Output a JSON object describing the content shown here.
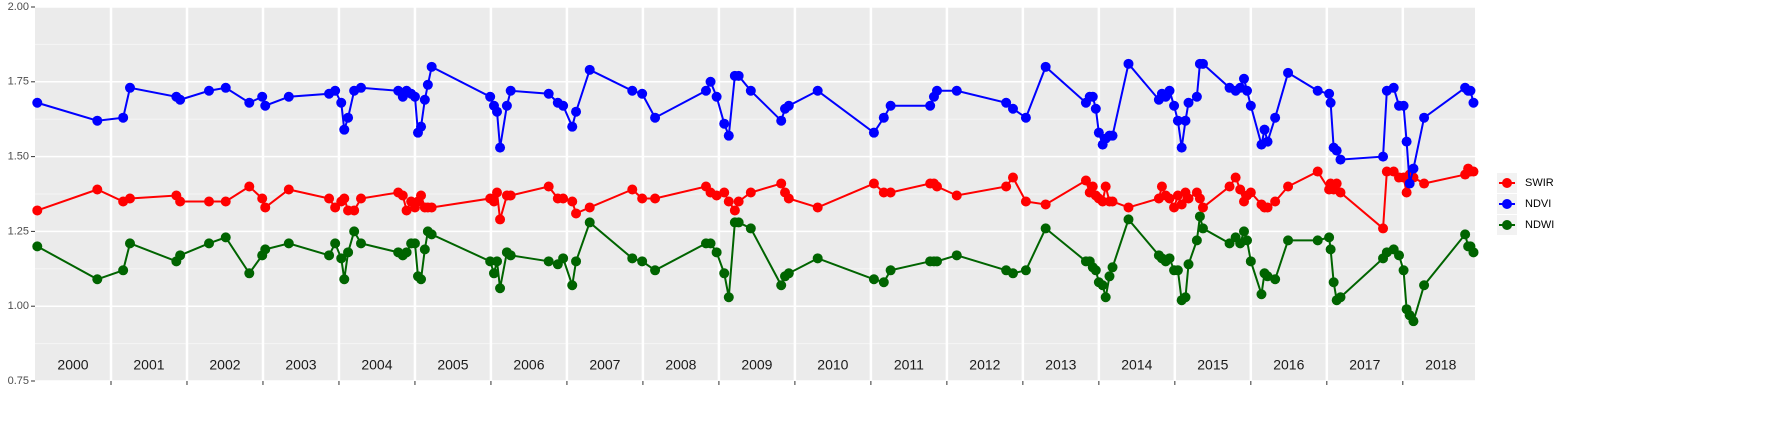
{
  "chart_data": {
    "type": "line",
    "x": [
      2000.03,
      2000.82,
      2001.16,
      2001.25,
      2001.86,
      2001.91,
      2002.29,
      2002.51,
      2002.82,
      2002.99,
      2003.03,
      2003.34,
      2003.87,
      2003.95,
      2004.03,
      2004.07,
      2004.12,
      2004.2,
      2004.29,
      2004.78,
      2004.84,
      2004.89,
      2004.95,
      2005.0,
      2005.04,
      2005.08,
      2005.13,
      2005.17,
      2005.22,
      2005.99,
      2006.04,
      2006.08,
      2006.12,
      2006.21,
      2006.26,
      2006.76,
      2006.88,
      2006.95,
      2007.07,
      2007.12,
      2007.3,
      2007.86,
      2007.99,
      2008.16,
      2008.83,
      2008.89,
      2008.97,
      2009.07,
      2009.13,
      2009.21,
      2009.26,
      2009.42,
      2009.82,
      2009.87,
      2009.92,
      2010.3,
      2011.04,
      2011.17,
      2011.26,
      2011.78,
      2011.83,
      2011.87,
      2012.13,
      2012.78,
      2012.87,
      2013.04,
      2013.3,
      2013.83,
      2013.88,
      2013.92,
      2013.96,
      2014.0,
      2014.05,
      2014.09,
      2014.14,
      2014.18,
      2014.39,
      2014.79,
      2014.83,
      2014.88,
      2014.93,
      2014.99,
      2015.04,
      2015.09,
      2015.14,
      2015.18,
      2015.29,
      2015.33,
      2015.37,
      2015.72,
      2015.8,
      2015.86,
      2015.91,
      2015.95,
      2016.0,
      2016.14,
      2016.18,
      2016.22,
      2016.32,
      2016.49,
      2016.88,
      2017.03,
      2017.05,
      2017.09,
      2017.13,
      2017.18,
      2017.74,
      2017.79,
      2017.88,
      2017.95,
      2018.01,
      2018.05,
      2018.09,
      2018.14,
      2018.28,
      2018.82,
      2018.86,
      2018.89,
      2018.93
    ],
    "series": [
      {
        "name": "SWIR",
        "color": "#ff0000",
        "values": [
          1.32,
          1.39,
          1.35,
          1.36,
          1.37,
          1.35,
          1.35,
          1.35,
          1.4,
          1.36,
          1.33,
          1.39,
          1.36,
          1.33,
          1.35,
          1.36,
          1.32,
          1.32,
          1.36,
          1.38,
          1.37,
          1.32,
          1.35,
          1.33,
          1.35,
          1.37,
          1.33,
          1.33,
          1.33,
          1.36,
          1.35,
          1.38,
          1.29,
          1.37,
          1.37,
          1.4,
          1.36,
          1.36,
          1.35,
          1.31,
          1.33,
          1.39,
          1.36,
          1.36,
          1.4,
          1.38,
          1.37,
          1.38,
          1.35,
          1.32,
          1.35,
          1.38,
          1.41,
          1.38,
          1.36,
          1.33,
          1.41,
          1.38,
          1.38,
          1.41,
          1.41,
          1.4,
          1.37,
          1.4,
          1.43,
          1.35,
          1.34,
          1.42,
          1.38,
          1.4,
          1.37,
          1.36,
          1.35,
          1.4,
          1.35,
          1.35,
          1.33,
          1.36,
          1.4,
          1.37,
          1.36,
          1.33,
          1.37,
          1.34,
          1.38,
          1.36,
          1.38,
          1.36,
          1.33,
          1.4,
          1.43,
          1.39,
          1.35,
          1.37,
          1.38,
          1.34,
          1.33,
          1.33,
          1.35,
          1.4,
          1.45,
          1.39,
          1.41,
          1.39,
          1.41,
          1.38,
          1.26,
          1.45,
          1.45,
          1.43,
          1.43,
          1.38,
          1.44,
          1.43,
          1.41,
          1.44,
          1.46,
          1.45,
          1.45
        ]
      },
      {
        "name": "NDVI",
        "color": "#0000ff",
        "values": [
          1.68,
          1.62,
          1.63,
          1.73,
          1.7,
          1.69,
          1.72,
          1.73,
          1.68,
          1.7,
          1.67,
          1.7,
          1.71,
          1.72,
          1.68,
          1.59,
          1.63,
          1.72,
          1.73,
          1.72,
          1.7,
          1.72,
          1.71,
          1.7,
          1.58,
          1.6,
          1.69,
          1.74,
          1.8,
          1.7,
          1.67,
          1.65,
          1.53,
          1.67,
          1.72,
          1.71,
          1.68,
          1.67,
          1.6,
          1.65,
          1.79,
          1.72,
          1.71,
          1.63,
          1.72,
          1.75,
          1.7,
          1.61,
          1.57,
          1.77,
          1.77,
          1.72,
          1.62,
          1.66,
          1.67,
          1.72,
          1.58,
          1.63,
          1.67,
          1.67,
          1.7,
          1.72,
          1.72,
          1.68,
          1.66,
          1.63,
          1.8,
          1.68,
          1.7,
          1.7,
          1.66,
          1.58,
          1.54,
          1.56,
          1.57,
          1.57,
          1.81,
          1.69,
          1.71,
          1.7,
          1.72,
          1.67,
          1.62,
          1.53,
          1.62,
          1.68,
          1.7,
          1.81,
          1.81,
          1.73,
          1.72,
          1.73,
          1.76,
          1.72,
          1.67,
          1.54,
          1.59,
          1.55,
          1.63,
          1.78,
          1.72,
          1.71,
          1.68,
          1.53,
          1.52,
          1.49,
          1.5,
          1.72,
          1.73,
          1.67,
          1.67,
          1.55,
          1.41,
          1.46,
          1.63,
          1.73,
          1.72,
          1.72,
          1.68
        ]
      },
      {
        "name": "NDWI",
        "color": "#006400",
        "values": [
          1.2,
          1.09,
          1.12,
          1.21,
          1.15,
          1.17,
          1.21,
          1.23,
          1.11,
          1.17,
          1.19,
          1.21,
          1.17,
          1.21,
          1.16,
          1.09,
          1.18,
          1.25,
          1.21,
          1.18,
          1.17,
          1.18,
          1.21,
          1.21,
          1.1,
          1.09,
          1.19,
          1.25,
          1.24,
          1.15,
          1.11,
          1.15,
          1.06,
          1.18,
          1.17,
          1.15,
          1.14,
          1.16,
          1.07,
          1.15,
          1.28,
          1.16,
          1.15,
          1.12,
          1.21,
          1.21,
          1.18,
          1.11,
          1.03,
          1.28,
          1.28,
          1.26,
          1.07,
          1.1,
          1.11,
          1.16,
          1.09,
          1.08,
          1.12,
          1.15,
          1.15,
          1.15,
          1.17,
          1.12,
          1.11,
          1.12,
          1.26,
          1.15,
          1.15,
          1.13,
          1.12,
          1.08,
          1.07,
          1.03,
          1.1,
          1.13,
          1.29,
          1.17,
          1.16,
          1.15,
          1.16,
          1.12,
          1.12,
          1.02,
          1.03,
          1.14,
          1.22,
          1.3,
          1.26,
          1.21,
          1.23,
          1.21,
          1.25,
          1.22,
          1.15,
          1.04,
          1.11,
          1.1,
          1.09,
          1.22,
          1.22,
          1.23,
          1.19,
          1.08,
          1.02,
          1.03,
          1.16,
          1.18,
          1.19,
          1.17,
          1.12,
          0.99,
          0.97,
          0.95,
          1.07,
          1.24,
          1.2,
          1.2,
          1.18
        ]
      }
    ],
    "xlim": [
      2000,
      2018.95
    ],
    "ylim": [
      0.75,
      2.0
    ],
    "yticks": [
      {
        "value": 0.75,
        "label": "0.75"
      },
      {
        "value": 1.0,
        "label": "1.00"
      },
      {
        "value": 1.25,
        "label": "1.25"
      },
      {
        "value": 1.5,
        "label": "1.50"
      },
      {
        "value": 1.75,
        "label": "1.75"
      },
      {
        "value": 2.0,
        "label": "2.00"
      }
    ],
    "year_lines": [
      2001,
      2002,
      2003,
      2004,
      2005,
      2006,
      2007,
      2008,
      2009,
      2010,
      2011,
      2012,
      2013,
      2014,
      2015,
      2016,
      2017,
      2018
    ],
    "xticks": [
      {
        "value": 2000.5,
        "label": "2000"
      },
      {
        "value": 2001.5,
        "label": "2001"
      },
      {
        "value": 2002.5,
        "label": "2002"
      },
      {
        "value": 2003.5,
        "label": "2003"
      },
      {
        "value": 2004.5,
        "label": "2004"
      },
      {
        "value": 2005.5,
        "label": "2005"
      },
      {
        "value": 2006.5,
        "label": "2006"
      },
      {
        "value": 2007.5,
        "label": "2007"
      },
      {
        "value": 2008.5,
        "label": "2008"
      },
      {
        "value": 2009.5,
        "label": "2009"
      },
      {
        "value": 2010.5,
        "label": "2010"
      },
      {
        "value": 2011.5,
        "label": "2011"
      },
      {
        "value": 2012.5,
        "label": "2012"
      },
      {
        "value": 2013.5,
        "label": "2013"
      },
      {
        "value": 2014.5,
        "label": "2014"
      },
      {
        "value": 2015.5,
        "label": "2015"
      },
      {
        "value": 2016.5,
        "label": "2016"
      },
      {
        "value": 2017.5,
        "label": "2017"
      },
      {
        "value": 2018.5,
        "label": "2018"
      }
    ],
    "grid": true,
    "legend": "right"
  }
}
